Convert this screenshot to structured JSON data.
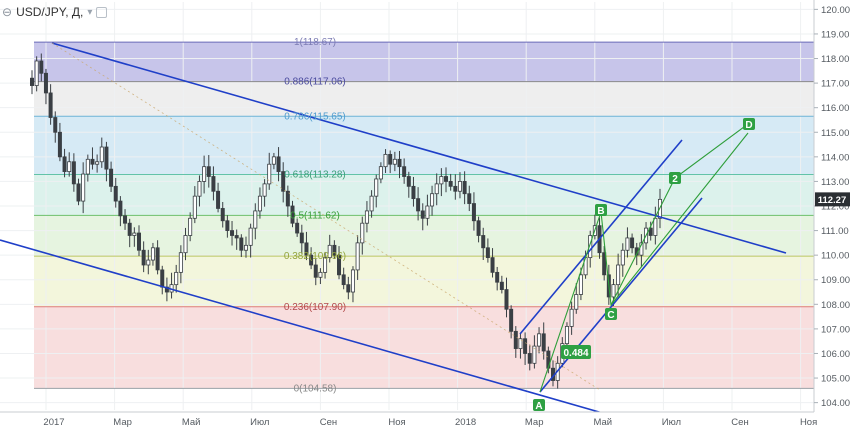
{
  "header": {
    "symbol_label": "USD/JPY, Д,",
    "collapse_glyph": "⊖",
    "dropdown_glyph": "▾"
  },
  "current_price": "112.27",
  "chart_data": {
    "type": "candlestick",
    "symbol": "USD/JPY",
    "timeframe": "Д",
    "y_axis": {
      "ticks": [
        "104.00",
        "105.00",
        "106.00",
        "107.00",
        "108.00",
        "109.00",
        "110.00",
        "111.00",
        "112.00",
        "113.00",
        "114.00",
        "115.00",
        "116.00",
        "117.00",
        "118.00",
        "119.00",
        "120.00"
      ],
      "ylim": [
        103.7,
        120.3
      ]
    },
    "x_axis": {
      "ticks": [
        "2017",
        "Мар",
        "Май",
        "Июл",
        "Сен",
        "Ноя",
        "2018",
        "Мар",
        "Май",
        "Июл",
        "Сен",
        "Ноя"
      ]
    },
    "fibonacci": [
      {
        "label": "1(118.67)",
        "level": 118.67
      },
      {
        "label": "0.886(117.06)",
        "level": 117.06
      },
      {
        "label": "0.786(115.65)",
        "level": 115.65
      },
      {
        "label": "0.618(113.28)",
        "level": 113.28
      },
      {
        "label": "0.5(111.62)",
        "level": 111.62
      },
      {
        "label": "0.382(109.96)",
        "level": 109.96
      },
      {
        "label": "0.236(107.90)",
        "level": 107.9
      },
      {
        "label": "0(104.58)",
        "level": 104.58
      }
    ],
    "fib_zone_colors": [
      "#c7c5ea",
      "#eeeeee",
      "#d6eaf5",
      "#dcf2ec",
      "#e6f4e0",
      "#f3f6dc",
      "#f8dede"
    ],
    "wave_labels": [
      {
        "label": "A",
        "month": "2018-03",
        "price": 104.6
      },
      {
        "label": "B",
        "month": "2018-05",
        "price": 111.4
      },
      {
        "label": "C",
        "month": "2018-06",
        "price": 108.1
      },
      {
        "label": "2",
        "month": "2018-07",
        "price": 112.9
      },
      {
        "label": "D",
        "month": "2018-09",
        "price": 115.4
      }
    ],
    "annotation": "0.484",
    "series_close": [
      116.9,
      117.9,
      117.4,
      116.6,
      115.6,
      115.0,
      114.0,
      113.4,
      113.8,
      112.9,
      112.2,
      113.3,
      113.9,
      113.7,
      113.8,
      114.4,
      113.5,
      112.8,
      112.2,
      111.6,
      111.3,
      110.8,
      110.9,
      110.2,
      109.6,
      109.8,
      110.3,
      109.4,
      108.7,
      108.5,
      108.8,
      109.3,
      110.1,
      110.8,
      111.5,
      112.4,
      113.0,
      113.6,
      113.2,
      112.6,
      111.9,
      111.4,
      111.0,
      110.8,
      110.7,
      110.2,
      110.4,
      111.1,
      111.8,
      112.4,
      112.9,
      113.7,
      114.0,
      113.4,
      112.6,
      112.0,
      111.3,
      110.9,
      110.5,
      110.0,
      109.6,
      109.1,
      109.3,
      109.9,
      110.4,
      110.0,
      109.2,
      108.8,
      108.5,
      109.4,
      110.5,
      111.3,
      111.8,
      112.4,
      113.1,
      113.6,
      114.1,
      113.7,
      113.9,
      113.6,
      113.2,
      112.8,
      112.3,
      111.8,
      111.5,
      112.0,
      112.5,
      112.9,
      113.2,
      113.0,
      112.8,
      112.6,
      113.0,
      112.5,
      112.1,
      111.4,
      110.8,
      110.3,
      109.9,
      109.3,
      108.9,
      108.6,
      107.8,
      106.9,
      106.2,
      106.6,
      106.0,
      105.6,
      106.3,
      106.8,
      106.1,
      105.4,
      104.9,
      105.6,
      106.4,
      107.1,
      107.8,
      108.4,
      109.2,
      109.9,
      110.8,
      111.2,
      110.1,
      109.2,
      108.3,
      108.8,
      109.6,
      110.2,
      110.7,
      110.3,
      110.0,
      110.5,
      111.1,
      110.8,
      111.5,
      112.27
    ]
  }
}
